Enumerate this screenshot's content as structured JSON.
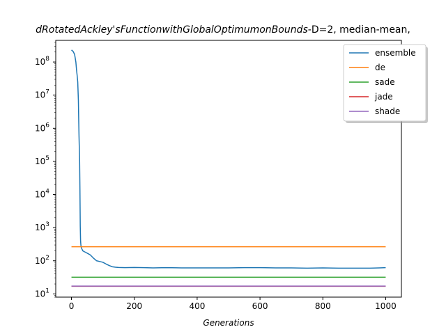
{
  "chart_data": {
    "type": "line",
    "title": {
      "prefix_italic": "dRotatedAckley'sFunctionwithGlobalOptimumonBounds",
      "suffix": "-D=2, median-mean,"
    },
    "xlabel": "Generations",
    "ylabel": "",
    "yscale": "log",
    "xlim": [
      -50,
      1050
    ],
    "ylim": [
      8,
      450000000
    ],
    "x_ticks": [
      0,
      200,
      400,
      600,
      800,
      1000
    ],
    "x_tick_labels": [
      "0",
      "200",
      "400",
      "600",
      "800",
      "1000"
    ],
    "y_ticks": [
      10,
      100,
      1000,
      10000,
      100000,
      1000000,
      10000000,
      100000000
    ],
    "y_tick_labels": [
      {
        "base": "10",
        "exp": "1"
      },
      {
        "base": "10",
        "exp": "2"
      },
      {
        "base": "10",
        "exp": "3"
      },
      {
        "base": "10",
        "exp": "4"
      },
      {
        "base": "10",
        "exp": "5"
      },
      {
        "base": "10",
        "exp": "6"
      },
      {
        "base": "10",
        "exp": "7"
      },
      {
        "base": "10",
        "exp": "8"
      }
    ],
    "grid": false,
    "legend_position": "top-right",
    "series": [
      {
        "name": "ensemble",
        "color": "#1f77b4",
        "x": [
          0,
          5,
          10,
          14,
          16,
          18,
          20,
          22,
          24,
          26,
          27,
          28,
          29,
          30,
          31,
          32,
          33,
          34,
          35,
          36,
          38,
          40,
          45,
          50,
          55,
          60,
          70,
          80,
          90,
          100,
          110,
          120,
          130,
          140,
          150,
          170,
          200,
          230,
          260,
          300,
          350,
          400,
          450,
          500,
          550,
          600,
          650,
          700,
          750,
          800,
          850,
          900,
          950,
          980,
          1000
        ],
        "y": [
          230000000,
          210000000,
          170000000,
          100000000,
          60000000,
          40000000,
          25000000,
          7000000,
          600000,
          100000,
          14000,
          1100,
          400,
          300,
          260,
          240,
          230,
          220,
          210,
          200,
          195,
          190,
          180,
          170,
          160,
          150,
          120,
          100,
          95,
          90,
          80,
          72,
          66,
          64,
          63,
          62,
          63,
          62,
          61,
          62,
          61,
          61,
          61,
          61,
          62,
          62,
          61,
          61,
          60,
          61,
          60,
          60,
          60,
          61,
          62
        ]
      },
      {
        "name": "de",
        "color": "#ff7f0e",
        "x": [
          0,
          1000
        ],
        "y": [
          265,
          265
        ]
      },
      {
        "name": "sade",
        "color": "#2ca02c",
        "x": [
          0,
          1000
        ],
        "y": [
          32,
          32
        ]
      },
      {
        "name": "jade",
        "color": "#d62728",
        "x": [
          0,
          1000
        ],
        "y": [
          17,
          17
        ]
      },
      {
        "name": "shade",
        "color": "#9467bd",
        "x": [
          0,
          1000
        ],
        "y": [
          17.2,
          17.2
        ]
      }
    ]
  }
}
